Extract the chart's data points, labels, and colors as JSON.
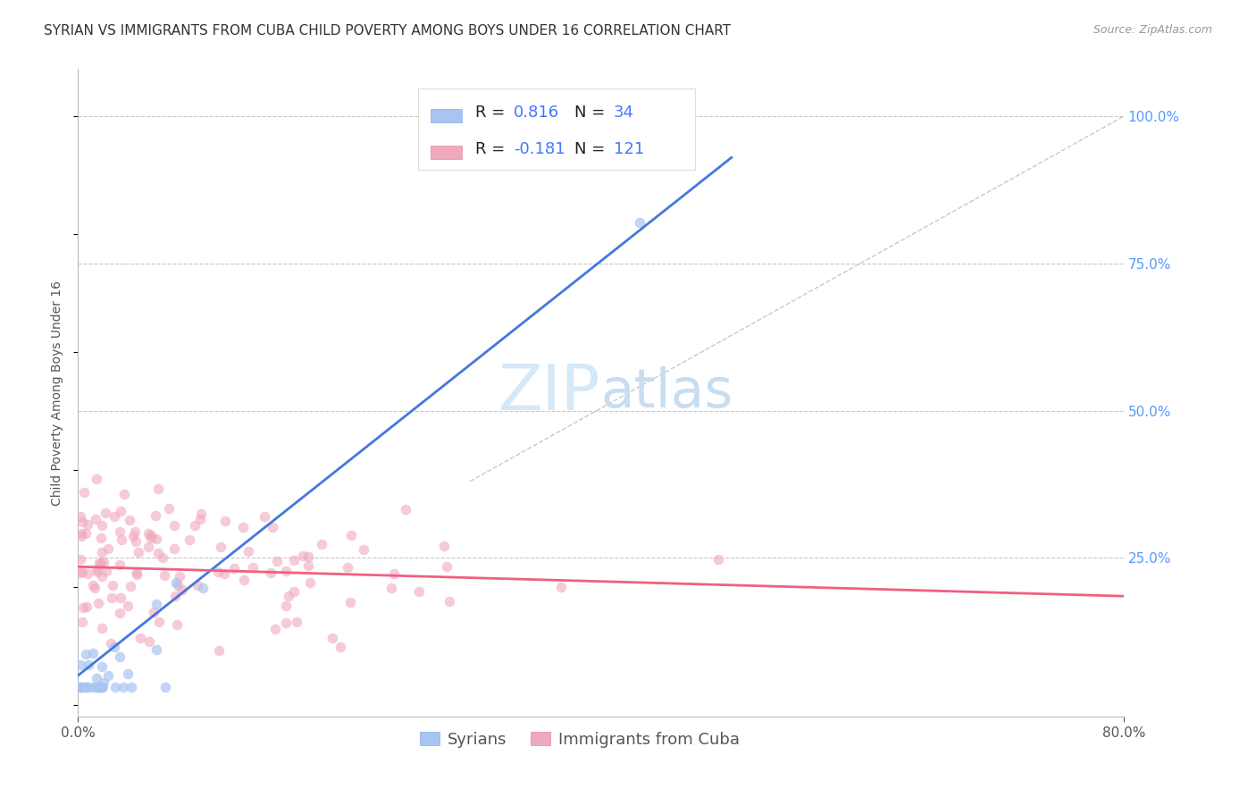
{
  "title": "SYRIAN VS IMMIGRANTS FROM CUBA CHILD POVERTY AMONG BOYS UNDER 16 CORRELATION CHART",
  "source": "Source: ZipAtlas.com",
  "ylabel": "Child Poverty Among Boys Under 16",
  "ytick_values": [
    1.0,
    0.75,
    0.5,
    0.25
  ],
  "xlim": [
    0.0,
    0.8
  ],
  "ylim": [
    -0.02,
    1.08
  ],
  "background_color": "#ffffff",
  "grid_color": "#c8c8c8",
  "syrian_color": "#a8c4f0",
  "cuba_color": "#f0a8bc",
  "syrian_line_color": "#4477dd",
  "cuba_line_color": "#f06080",
  "diagonal_color": "#bbbbbb",
  "legend_syrian_label": "Syrians",
  "legend_cuba_label": "Immigrants from Cuba",
  "legend_R_syrian": "0.816",
  "legend_N_syrian": "34",
  "legend_R_cuba": "-0.181",
  "legend_N_cuba": "121",
  "watermark_zip": "ZIP",
  "watermark_atlas": "atlas",
  "title_fontsize": 11,
  "axis_label_fontsize": 10,
  "tick_fontsize": 11,
  "legend_fontsize": 13,
  "watermark_fontsize": 52,
  "source_fontsize": 9,
  "right_tick_color": "#5599ff",
  "text_dark": "#333333",
  "text_blue": "#4477ff"
}
